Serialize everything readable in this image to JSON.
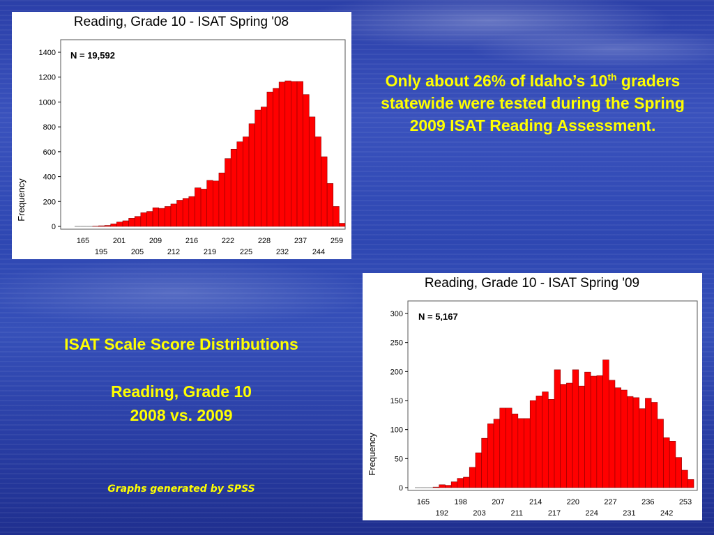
{
  "slide": {
    "headline": {
      "before": "Only about 26% of Idaho’s 10",
      "sup": "th",
      "after": " graders statewide were tested during the Spring 2009 ISAT Reading Assessment."
    },
    "side_heading": "ISAT Scale Score Distributions",
    "side_sub1": "Reading, Grade 10",
    "side_sub2": "2008 vs. 2009",
    "footnote": "Graphs generated by SPSS",
    "colors": {
      "background": "#2e47b2",
      "accent_text": "#ffff00",
      "bar_fill": "#ff0000",
      "bar_stroke": "#8b0000"
    }
  },
  "chart_data": [
    {
      "type": "bar",
      "title": "Reading, Grade 10 - ISAT Spring '08",
      "annotation": "N = 19,592",
      "xlabel": "",
      "ylabel": "Frequency",
      "ylim": [
        0,
        1400
      ],
      "yticks": [
        0,
        200,
        400,
        600,
        800,
        1000,
        1200,
        1400
      ],
      "xtick_labels_top": [
        "165",
        "201",
        "209",
        "216",
        "222",
        "228",
        "237",
        "259"
      ],
      "xtick_labels_bottom": [
        "195",
        "205",
        "212",
        "219",
        "225",
        "232",
        "244"
      ],
      "grid": false,
      "values": [
        0,
        0,
        0,
        2,
        5,
        8,
        20,
        35,
        45,
        65,
        80,
        110,
        120,
        150,
        145,
        160,
        180,
        210,
        225,
        240,
        310,
        300,
        370,
        365,
        430,
        545,
        620,
        680,
        720,
        825,
        935,
        960,
        1080,
        1110,
        1160,
        1170,
        1165,
        1165,
        1060,
        880,
        720,
        560,
        345,
        160,
        25
      ]
    },
    {
      "type": "bar",
      "title": "Reading, Grade 10 - ISAT Spring '09",
      "annotation": "N = 5,167",
      "xlabel": "",
      "ylabel": "Frequency",
      "ylim": [
        0,
        300
      ],
      "yticks": [
        0,
        50,
        100,
        150,
        200,
        250,
        300
      ],
      "xtick_labels_top": [
        "165",
        "198",
        "207",
        "214",
        "220",
        "227",
        "236",
        "253"
      ],
      "xtick_labels_bottom": [
        "192",
        "203",
        "211",
        "217",
        "224",
        "231",
        "242"
      ],
      "grid": false,
      "values": [
        0,
        0,
        0,
        1,
        5,
        4,
        10,
        16,
        18,
        35,
        60,
        85,
        110,
        118,
        137,
        137,
        127,
        119,
        119,
        150,
        158,
        165,
        152,
        203,
        178,
        180,
        203,
        175,
        199,
        192,
        193,
        220,
        185,
        172,
        168,
        157,
        155,
        136,
        154,
        147,
        118,
        86,
        80,
        52,
        30,
        14
      ]
    }
  ]
}
